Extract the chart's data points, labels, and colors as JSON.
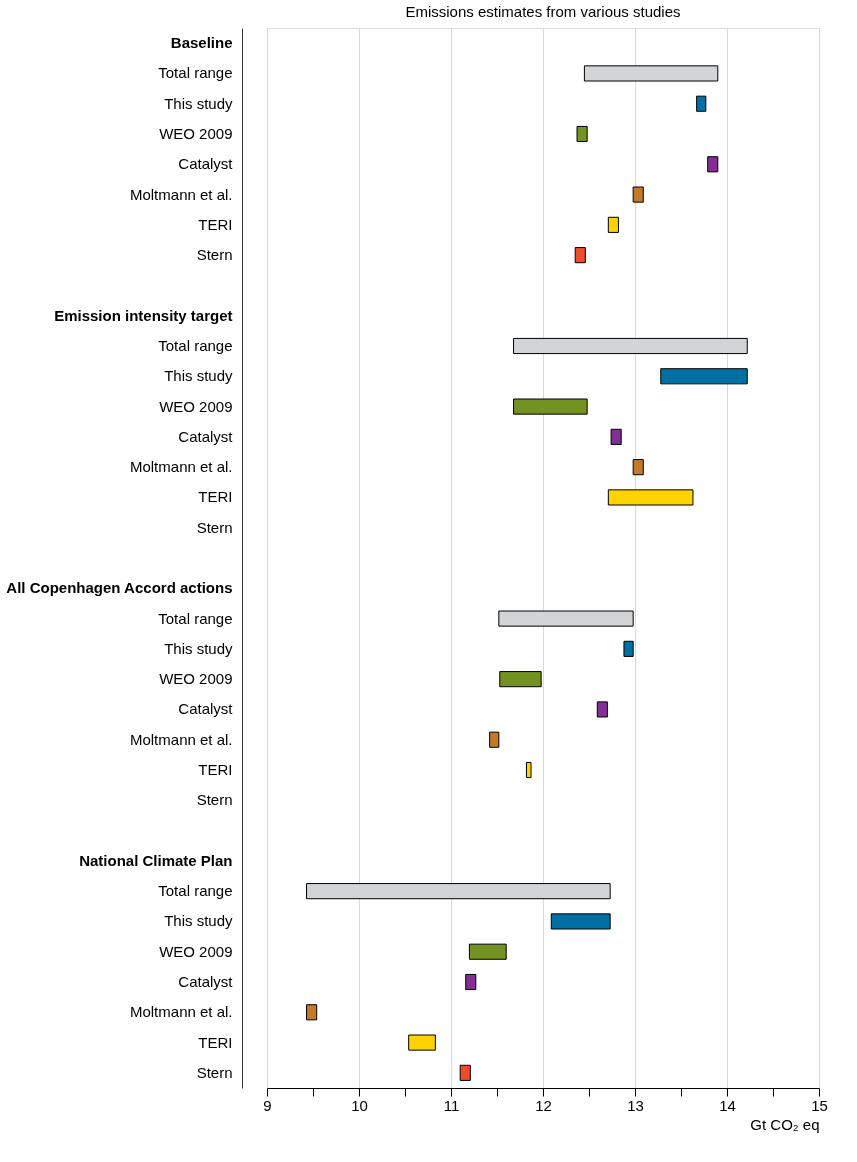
{
  "chart_data": {
    "type": "bar",
    "orientation": "horizontal",
    "title": "Emissions estimates from various studies",
    "xlabel": "Gt CO₂ eq",
    "categories": [
      "Baseline",
      "Total range",
      "This study",
      "WEO 2009",
      "Catalyst",
      "Moltmann et al.",
      "TERI",
      "Stern",
      null,
      "Emission intensity target",
      "Total range",
      "This study",
      "WEO 2009",
      "Catalyst",
      "Moltmann et al.",
      "TERI",
      "Stern",
      null,
      "All Copenhagen Accord actions",
      "Total range",
      "This study",
      "WEO 2009",
      "Catalyst",
      "Moltmann et al.",
      "TERI",
      "Stern",
      null,
      "National Climate Plan",
      "Total range",
      "This study",
      "WEO 2009",
      "Catalyst",
      "Moltmann et al.",
      "TERI",
      "Stern"
    ],
    "base": [
      null,
      12.45,
      13.67,
      12.37,
      13.79,
      12.98,
      12.71,
      12.35,
      null,
      null,
      11.68,
      13.28,
      11.68,
      12.74,
      12.98,
      12.71,
      null,
      null,
      null,
      11.52,
      12.88,
      11.53,
      12.59,
      11.42,
      11.82,
      null,
      null,
      null,
      9.43,
      12.09,
      11.2,
      11.16,
      9.43,
      10.54,
      11.1
    ],
    "values": [
      null,
      1.45,
      0.1,
      0.11,
      0.11,
      0.11,
      0.11,
      0.11,
      null,
      null,
      2.54,
      0.94,
      0.8,
      0.11,
      0.11,
      0.92,
      null,
      null,
      null,
      1.46,
      0.1,
      0.45,
      0.11,
      0.1,
      0.05,
      null,
      null,
      null,
      3.3,
      0.64,
      0.4,
      0.11,
      0.11,
      0.29,
      0.11
    ],
    "colors": [
      null,
      "#d3d4d6",
      "#0070a3",
      "#739221",
      "#832e94",
      "#c47a2c",
      "#ffd200",
      "#ee4a2c",
      null,
      null,
      "#d3d4d6",
      "#0070a3",
      "#739221",
      "#832e94",
      "#c47a2c",
      "#ffd200",
      null,
      null,
      null,
      "#d3d4d6",
      "#0070a3",
      "#739221",
      "#832e94",
      "#c47a2c",
      "#ffd200",
      null,
      null,
      null,
      "#d3d4d6",
      "#0070a3",
      "#739221",
      "#832e94",
      "#c47a2c",
      "#ffd200",
      "#ee4a2c"
    ],
    "xlim": [
      9,
      15
    ],
    "xticks": [
      9,
      {
        "value": 9.5,
        "label": null
      },
      10,
      {
        "value": 10.5,
        "label": null
      },
      11,
      {
        "value": 11.5,
        "label": null
      },
      12,
      {
        "value": 12.5,
        "label": null
      },
      13,
      {
        "value": 13.5,
        "label": null
      },
      14,
      {
        "value": 14.5,
        "label": null
      },
      15
    ],
    "grid": "x"
  }
}
